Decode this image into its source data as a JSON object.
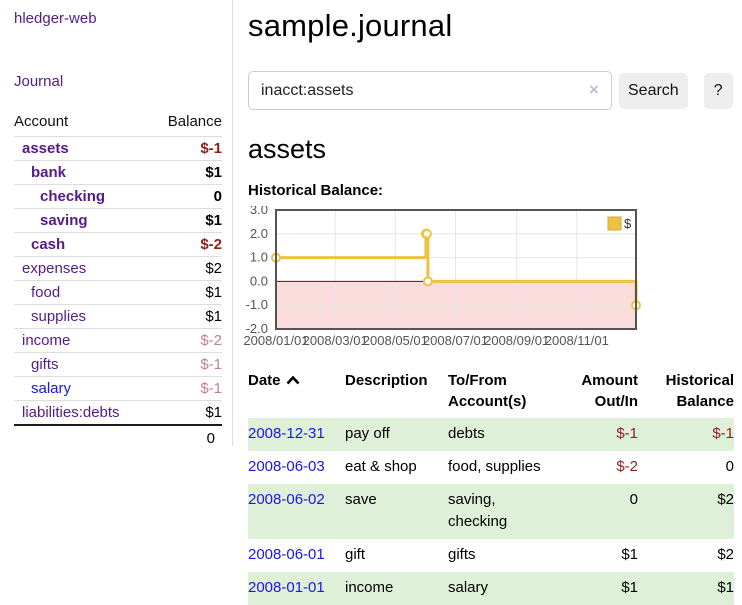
{
  "app": {
    "brand": "hledger-web",
    "nav": {
      "journal": "Journal"
    }
  },
  "sidebar": {
    "header": {
      "account": "Account",
      "balance": "Balance"
    },
    "rows": [
      {
        "name": "assets",
        "balance": "$-1",
        "level": 1,
        "bold": true,
        "link": "visited",
        "balance_style": "neg-strong"
      },
      {
        "name": "bank",
        "balance": "$1",
        "level": 2,
        "bold": true,
        "link": "visited",
        "balance_style": "pos"
      },
      {
        "name": "checking",
        "balance": "0",
        "level": 3,
        "bold": true,
        "link": "visited",
        "balance_style": "pos"
      },
      {
        "name": "saving",
        "balance": "$1",
        "level": 3,
        "bold": true,
        "link": "visited",
        "balance_style": "pos"
      },
      {
        "name": "cash",
        "balance": "$-2",
        "level": 2,
        "bold": true,
        "link": "visited",
        "balance_style": "neg-strong"
      },
      {
        "name": "expenses",
        "balance": "$2",
        "level": 1,
        "bold": false,
        "link": "visited",
        "balance_style": "pos"
      },
      {
        "name": "food",
        "balance": "$1",
        "level": 2,
        "bold": false,
        "link": "visited",
        "balance_style": "pos"
      },
      {
        "name": "supplies",
        "balance": "$1",
        "level": 2,
        "bold": false,
        "link": "visited",
        "balance_style": "pos"
      },
      {
        "name": "income",
        "balance": "$-2",
        "level": 1,
        "bold": false,
        "link": "visited",
        "balance_style": "neg-dim"
      },
      {
        "name": "gifts",
        "balance": "$-1",
        "level": 2,
        "bold": false,
        "link": "visited",
        "balance_style": "neg-dim"
      },
      {
        "name": "salary",
        "balance": "$-1",
        "level": 2,
        "bold": false,
        "link": "unvisited",
        "balance_style": "neg-dim"
      },
      {
        "name": "liabilities:debts",
        "balance": "$1",
        "level": 1,
        "bold": false,
        "link": "visited",
        "balance_style": "pos",
        "thick_rule_below": true
      }
    ],
    "total": "0"
  },
  "main": {
    "title": "sample.journal",
    "search": {
      "value": "inacct:assets",
      "clear_icon": "×",
      "search_button": "Search",
      "help_button": "?"
    },
    "account_heading": "assets",
    "chart_heading": "Historical Balance:"
  },
  "chart_data": {
    "type": "line",
    "title": "Historical Balance",
    "x": [
      "2008/01/01",
      "2008/06/01",
      "2008/06/02",
      "2008/06/03",
      "2008/12/31"
    ],
    "series": [
      {
        "name": "$",
        "color": "#edc240",
        "steps": true,
        "values": [
          1,
          2,
          2,
          0,
          -1
        ]
      }
    ],
    "xlim": [
      "2008/01/01",
      "2008/12/31"
    ],
    "ylim": [
      -2,
      3
    ],
    "yticks": [
      3,
      2,
      1,
      0,
      -1,
      -2
    ],
    "xticks": [
      "2008/01/01",
      "2008/03/01",
      "2008/05/01",
      "2008/07/01",
      "2008/09/01",
      "2008/11/01"
    ],
    "grid": true,
    "grid_color": "#e6e6e6",
    "border_color": "#545454",
    "tick_label_color": "#545454",
    "zero_line_color": "#8b0000",
    "negative_region_fill": "#fadcdc",
    "legend": [
      "$"
    ],
    "legend_position": "top-right"
  },
  "register": {
    "columns": [
      {
        "label": "Date",
        "align": "left",
        "sorted": "ascending"
      },
      {
        "label": "Description",
        "align": "left"
      },
      {
        "label": "To/From Account(s)",
        "align": "left"
      },
      {
        "label": "Amount Out/In",
        "align": "right"
      },
      {
        "label": "Historical Balance",
        "align": "right"
      }
    ],
    "rows": [
      {
        "date": "2008-12-31",
        "description": "pay off",
        "accounts": "debts",
        "amount": "$-1",
        "amount_negative": true,
        "balance": "$-1",
        "balance_negative": true
      },
      {
        "date": "2008-06-03",
        "description": "eat & shop",
        "accounts": "food, supplies",
        "amount": "$-2",
        "amount_negative": true,
        "balance": "0",
        "balance_negative": false
      },
      {
        "date": "2008-06-02",
        "description": "save",
        "accounts": "saving, checking",
        "amount": "0",
        "amount_negative": false,
        "balance": "$2",
        "balance_negative": false
      },
      {
        "date": "2008-06-01",
        "description": "gift",
        "accounts": "gifts",
        "amount": "$1",
        "amount_negative": false,
        "balance": "$2",
        "balance_negative": false
      },
      {
        "date": "2008-01-01",
        "description": "income",
        "accounts": "salary",
        "amount": "$1",
        "amount_negative": false,
        "balance": "$1",
        "balance_negative": false
      }
    ]
  },
  "colors": {
    "link_visited": "#551a8b",
    "link_unvisited": "#1616ee",
    "negative_strong": "#961c1c",
    "negative_dim": "#c2838d",
    "row_alt_green": "#dff0d8",
    "divider": "#dddddd",
    "button_bg": "#eeeeee",
    "chart_line": "#edc240"
  }
}
